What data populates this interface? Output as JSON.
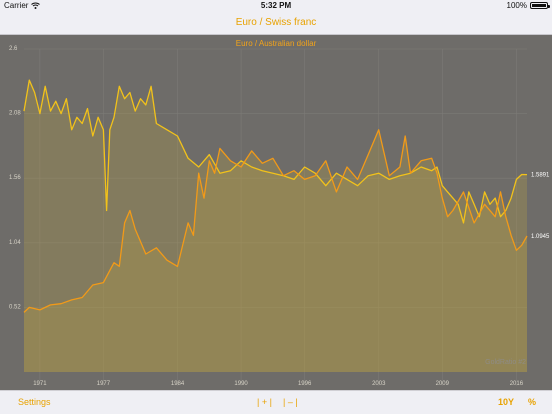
{
  "status_bar": {
    "carrier": "Carrier",
    "time": "5:32 PM",
    "battery": "100%",
    "battery_level": 1.0
  },
  "nav": {
    "title": "Euro / Swiss franc"
  },
  "toolbar": {
    "settings": "Settings",
    "zoom_in": "| + |",
    "zoom_out": "| – |",
    "range": "10Y",
    "percent": "%"
  },
  "colors": {
    "accent": "#e8a200",
    "chart_bg": "#6e6c69",
    "series_a": "#f2c21a",
    "series_b": "#f29a18"
  },
  "chart_data": {
    "type": "line",
    "title": "Euro / Australian dollar",
    "watermark": "GoldRatio #2",
    "yticks": [
      "2.6",
      "2.08",
      "1.56",
      "1.04",
      "0.52"
    ],
    "ylim": [
      0,
      2.6
    ],
    "xticks": [
      "1971",
      "1977",
      "1984",
      "1990",
      "1996",
      "2003",
      "2009",
      "2016"
    ],
    "xlim": [
      1969.5,
      2017
    ],
    "grid": true,
    "end_labels": [
      "1.5891",
      "1.0945"
    ],
    "series": [
      {
        "x": [
          1969.5,
          1970,
          1970.5,
          1971,
          1971.5,
          1972,
          1972.5,
          1973,
          1973.5,
          1974,
          1974.5,
          1975,
          1975.5,
          1976,
          1976.5,
          1977,
          1977.3,
          1977.6,
          1978,
          1978.5,
          1979,
          1979.5,
          1980,
          1980.5,
          1981,
          1981.5,
          1982,
          1983,
          1984,
          1985,
          1986,
          1987,
          1988,
          1989,
          1990,
          1991,
          1992,
          1993,
          1994,
          1995,
          1996,
          1997,
          1998,
          1999,
          2000,
          2001,
          2002,
          2003,
          2004,
          2005,
          2006,
          2007,
          2008,
          2008.5,
          2009,
          2009.5,
          2010,
          2010.5,
          2011,
          2011.5,
          2012,
          2012.5,
          2013,
          2013.5,
          2014,
          2014.5,
          2015,
          2015.5,
          2016,
          2016.5,
          2017
        ],
        "y": [
          2.1,
          2.35,
          2.25,
          2.08,
          2.3,
          2.1,
          2.18,
          2.08,
          2.2,
          1.95,
          2.05,
          2.0,
          2.12,
          1.9,
          2.05,
          1.95,
          1.3,
          1.95,
          2.05,
          2.3,
          2.2,
          2.25,
          2.1,
          2.2,
          2.15,
          2.3,
          2.0,
          1.95,
          1.9,
          1.72,
          1.65,
          1.75,
          1.6,
          1.62,
          1.7,
          1.65,
          1.62,
          1.6,
          1.58,
          1.55,
          1.65,
          1.6,
          1.5,
          1.6,
          1.55,
          1.5,
          1.58,
          1.6,
          1.55,
          1.58,
          1.6,
          1.65,
          1.62,
          1.65,
          1.5,
          1.45,
          1.4,
          1.35,
          1.2,
          1.45,
          1.35,
          1.25,
          1.45,
          1.35,
          1.4,
          1.25,
          1.3,
          1.4,
          1.55,
          1.59,
          1.5891
        ]
      },
      {
        "x": [
          1969.5,
          1970,
          1971,
          1972,
          1973,
          1974,
          1975,
          1976,
          1977,
          1977.5,
          1978,
          1978.5,
          1979,
          1979.5,
          1980,
          1981,
          1982,
          1983,
          1984,
          1985,
          1985.5,
          1986,
          1986.5,
          1987,
          1987.5,
          1988,
          1989,
          1990,
          1991,
          1992,
          1993,
          1994,
          1995,
          1996,
          1997,
          1998,
          1999,
          2000,
          2000.5,
          2001,
          2002,
          2003,
          2004,
          2005,
          2005.5,
          2006,
          2007,
          2008,
          2008.5,
          2009,
          2009.5,
          2010,
          2011,
          2012,
          2013,
          2014,
          2014.5,
          2015,
          2015.5,
          2016,
          2016.5,
          2017
        ],
        "y": [
          0.48,
          0.52,
          0.5,
          0.54,
          0.55,
          0.58,
          0.6,
          0.7,
          0.72,
          0.8,
          0.88,
          0.85,
          1.2,
          1.3,
          1.15,
          0.95,
          1.0,
          0.9,
          0.85,
          1.2,
          1.1,
          1.6,
          1.4,
          1.7,
          1.6,
          1.8,
          1.7,
          1.65,
          1.78,
          1.68,
          1.72,
          1.58,
          1.62,
          1.55,
          1.58,
          1.7,
          1.45,
          1.65,
          1.6,
          1.55,
          1.75,
          1.95,
          1.58,
          1.65,
          1.9,
          1.6,
          1.7,
          1.72,
          1.6,
          1.4,
          1.25,
          1.3,
          1.45,
          1.2,
          1.35,
          1.25,
          1.45,
          1.25,
          1.1,
          0.98,
          1.02,
          1.0945
        ]
      }
    ]
  }
}
